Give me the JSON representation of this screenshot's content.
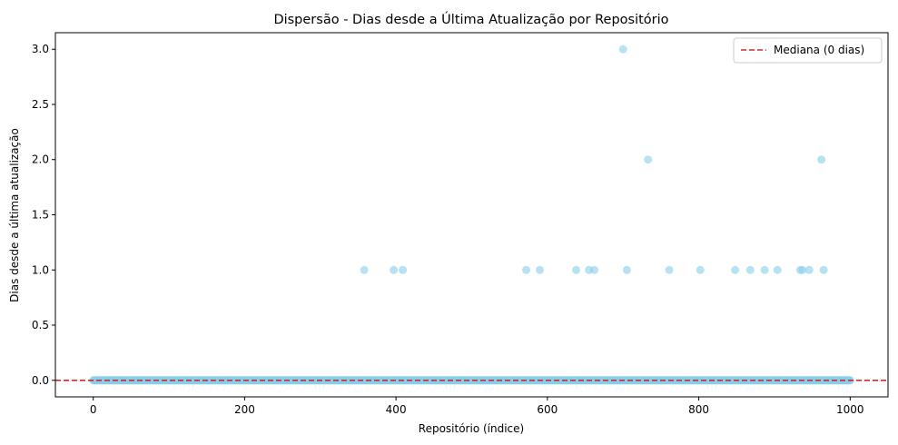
{
  "chart_data": {
    "type": "scatter",
    "title": "Dispersão - Dias desde a Última Atualização por Repositório",
    "xlabel": "Repositório (índice)",
    "ylabel": "Dias desde a última atualização",
    "xlim": [
      -50,
      1050
    ],
    "ylim": [
      -0.15,
      3.15
    ],
    "x_ticks": [
      0,
      200,
      400,
      600,
      800,
      1000
    ],
    "x_tick_labels": [
      "0",
      "200",
      "400",
      "600",
      "800",
      "1000"
    ],
    "y_ticks": [
      0.0,
      0.5,
      1.0,
      1.5,
      2.0,
      2.5,
      3.0
    ],
    "y_tick_labels": [
      "0.0",
      "0.5",
      "1.0",
      "1.5",
      "2.0",
      "2.5",
      "3.0"
    ],
    "grid": false,
    "legend_position": "top-right",
    "point_color": "#87ceeb",
    "median_line_color": "#d62728",
    "baseline": {
      "x_start": 0,
      "x_end": 1000,
      "y": 0
    },
    "series": [
      {
        "name": "",
        "points": [
          [
            358,
            1
          ],
          [
            397,
            1
          ],
          [
            409,
            1
          ],
          [
            572,
            1
          ],
          [
            590,
            1
          ],
          [
            638,
            1
          ],
          [
            655,
            1
          ],
          [
            662,
            1
          ],
          [
            700,
            3
          ],
          [
            705,
            1
          ],
          [
            733,
            2
          ],
          [
            761,
            1
          ],
          [
            802,
            1
          ],
          [
            848,
            1
          ],
          [
            868,
            1
          ],
          [
            887,
            1
          ],
          [
            904,
            1
          ],
          [
            934,
            1
          ],
          [
            937,
            1
          ],
          [
            946,
            1
          ],
          [
            962,
            2
          ],
          [
            965,
            1
          ]
        ]
      }
    ],
    "median": {
      "value": 0,
      "label": "Mediana (0 dias)"
    }
  }
}
